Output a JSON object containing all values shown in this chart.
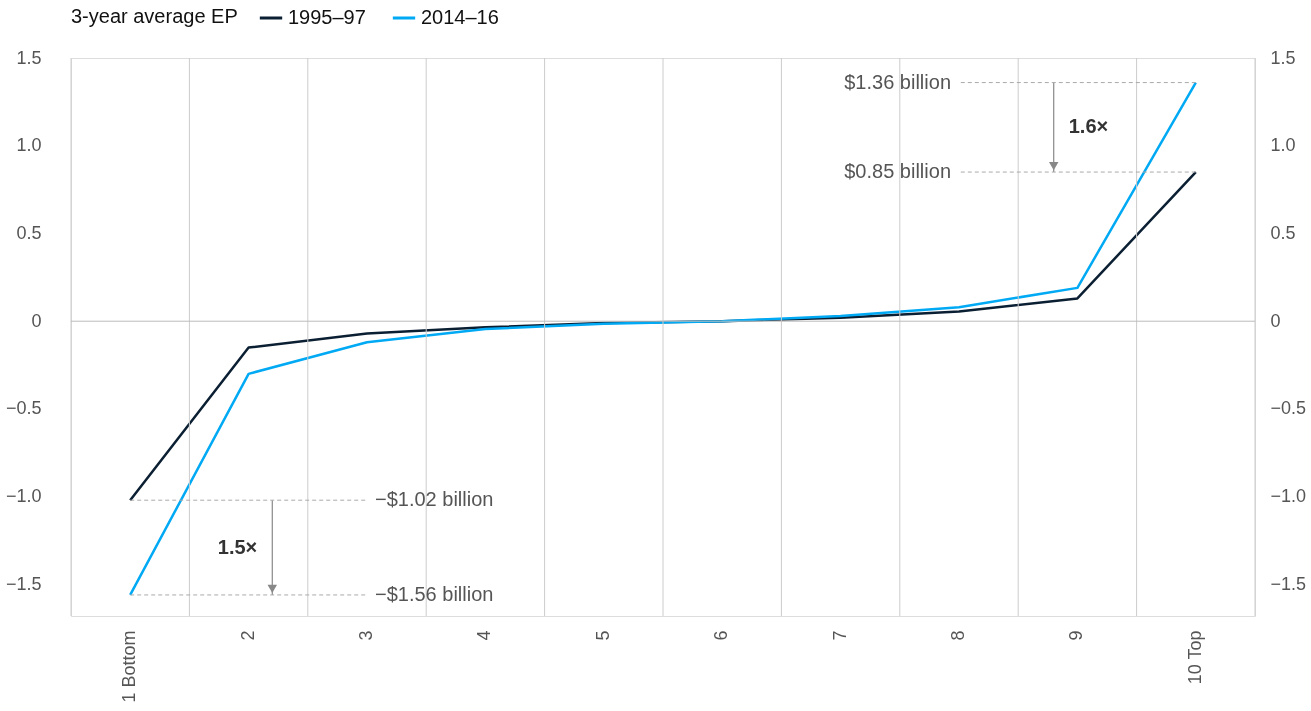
{
  "chart_data": {
    "type": "line",
    "categories": [
      "1 Bottom",
      "2",
      "3",
      "4",
      "5",
      "6",
      "7",
      "8",
      "9",
      "10 Top"
    ],
    "series": [
      {
        "name": "1995–97",
        "color": "#0b1f33",
        "values": [
          -1.02,
          -0.15,
          -0.07,
          -0.035,
          -0.01,
          0,
          0.02,
          0.055,
          0.13,
          0.85
        ]
      },
      {
        "name": "2014–16",
        "color": "#00a9f4",
        "values": [
          -1.56,
          -0.3,
          -0.12,
          -0.045,
          -0.015,
          0,
          0.03,
          0.08,
          0.19,
          1.36
        ]
      }
    ],
    "legend_title": "3-year average EP",
    "legend": "top",
    "ylim": [
      -1.68,
      1.5
    ],
    "yticks": [
      {
        "value": -1.5,
        "label": "−1.5"
      },
      {
        "value": -1,
        "label": "−1.0"
      },
      {
        "value": -0.5,
        "label": "−0.5"
      },
      0,
      0.5,
      {
        "value": 1,
        "label": "1.0"
      },
      1.5
    ],
    "y2lim": [
      -1.68,
      1.5
    ],
    "y2ticks": [
      {
        "value": -1.5,
        "label": "−1.5"
      },
      {
        "value": -1,
        "label": "−1.0"
      },
      {
        "value": -0.5,
        "label": "−0.5"
      },
      0,
      0.5,
      {
        "value": 1,
        "label": "1.0"
      },
      1.5
    ],
    "grid": "x",
    "ref_lines": [
      {
        "axis": "y",
        "value": 0,
        "color": "#bbbbbb"
      }
    ],
    "annotations": [
      {
        "text": "$1.36 billion",
        "x": "10 Top",
        "y": 1.36
      },
      {
        "text": "$0.85 billion",
        "x": "10 Top",
        "y": 0.85
      },
      {
        "text": "−$1.02 billion",
        "x": "1 Bottom",
        "y": -1.02
      },
      {
        "text": "−$1.56 billion",
        "x": "1 Bottom",
        "y": -1.56
      },
      "1.6×",
      "1.5×"
    ]
  }
}
